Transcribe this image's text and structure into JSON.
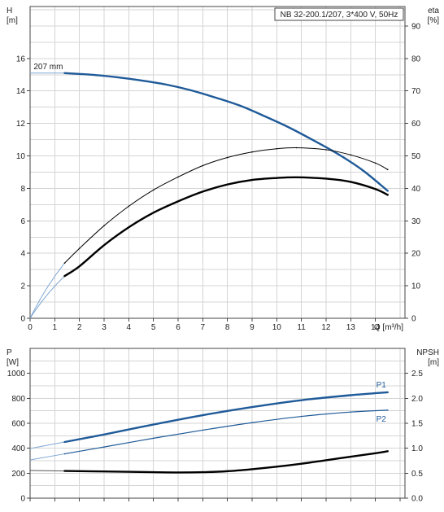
{
  "colors": {
    "blue": "#1f5a99",
    "blue_light": "#7fa7d3",
    "black": "#000000",
    "grid": "#d4d4d4",
    "frame": "#444444"
  },
  "chart_data": [
    {
      "type": "line",
      "title": "NB 32-200.1/207, 3*400 V, 50Hz",
      "grid": true,
      "x": {
        "label": "Q [m³/h]",
        "lim": [
          0,
          15.2
        ],
        "ticks": [
          0,
          1,
          2,
          3,
          4,
          5,
          6,
          7,
          8,
          9,
          10,
          11,
          12,
          13,
          14
        ]
      },
      "y_left": {
        "label_top": "H",
        "label_unit": "[m]",
        "lim": [
          0,
          19.2
        ],
        "ticks": [
          0,
          2,
          4,
          6,
          8,
          10,
          12,
          14,
          16
        ]
      },
      "y_right": {
        "label_top": "eta",
        "label_unit": "[%]",
        "lim": [
          0,
          96
        ],
        "ticks": [
          0,
          10,
          20,
          30,
          40,
          50,
          60,
          70,
          80,
          90
        ]
      },
      "annotations": [
        {
          "text": "207 mm",
          "x": 1.4,
          "y": 15.1
        }
      ],
      "series": [
        {
          "name": "",
          "axis": "left",
          "style": "thick-blue",
          "x": [
            1.4,
            2.5,
            3.5,
            4.5,
            5.5,
            6.5,
            7.5,
            8.5,
            9.5,
            10.5,
            11.5,
            12.5,
            13.5,
            14.5
          ],
          "values": [
            15.1,
            15.0,
            14.85,
            14.65,
            14.4,
            14.05,
            13.6,
            13.1,
            12.45,
            11.75,
            10.95,
            10.1,
            9.1,
            7.85
          ]
        },
        {
          "name": "",
          "axis": "right",
          "style": "thin-black",
          "x": [
            1.4,
            2,
            3,
            4,
            5,
            6,
            7,
            8,
            9,
            10,
            10.8,
            12,
            13,
            14,
            14.5
          ],
          "values": [
            17,
            21.5,
            28.5,
            34.5,
            39.5,
            43.5,
            47,
            49.5,
            51.2,
            52.2,
            52.5,
            51.9,
            50.3,
            47.8,
            45.8
          ]
        },
        {
          "name": "",
          "axis": "right",
          "style": "thick-black",
          "x": [
            1.4,
            2,
            3,
            4,
            5,
            6,
            7,
            8,
            9,
            10,
            10.8,
            12,
            13,
            14,
            14.5
          ],
          "values": [
            13,
            16,
            22.5,
            28,
            32.5,
            36,
            39,
            41.2,
            42.6,
            43.2,
            43.4,
            43,
            42,
            39.8,
            38
          ]
        }
      ]
    },
    {
      "type": "line",
      "grid": true,
      "x": {
        "lim": [
          0,
          15.2
        ]
      },
      "y_left": {
        "label_top": "P",
        "label_unit": "[W]",
        "lim": [
          0,
          1200
        ],
        "ticks": [
          0,
          200,
          400,
          600,
          800,
          1000
        ]
      },
      "y_right": {
        "label_top": "NPSH",
        "label_unit": "[m]",
        "lim": [
          0,
          3
        ],
        "ticks": [
          "0.0",
          "0.5",
          "1.0",
          "1.5",
          "2.0",
          "2.5"
        ]
      },
      "series": [
        {
          "name": "P1",
          "axis": "left",
          "style": "thick-blue",
          "x": [
            1.4,
            3,
            5,
            7,
            9,
            11,
            13,
            14.5
          ],
          "values": [
            450,
            510,
            590,
            665,
            730,
            785,
            825,
            848
          ]
        },
        {
          "name": "P2",
          "axis": "left",
          "style": "thin-blue",
          "x": [
            1.4,
            3,
            5,
            7,
            9,
            11,
            13,
            14.5
          ],
          "values": [
            355,
            410,
            480,
            545,
            605,
            655,
            690,
            705
          ]
        },
        {
          "name": "",
          "axis": "right",
          "style": "thick-black",
          "x": [
            1.4,
            3,
            5,
            6,
            7,
            8,
            9,
            10,
            11,
            12,
            13,
            14,
            14.5
          ],
          "values": [
            0.545,
            0.535,
            0.52,
            0.515,
            0.52,
            0.54,
            0.58,
            0.63,
            0.69,
            0.76,
            0.83,
            0.9,
            0.94
          ]
        }
      ]
    }
  ]
}
